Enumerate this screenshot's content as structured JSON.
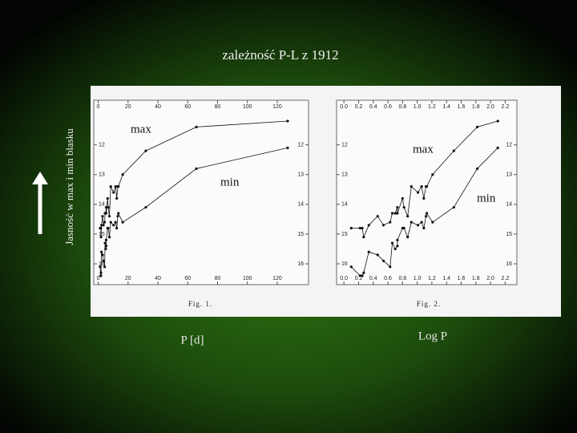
{
  "title": "zależność P-L  z 1912",
  "y_label": "Jasność w max i min blasku",
  "chart_data": [
    {
      "type": "scatter",
      "caption": "Fig. 1.",
      "x_label": "P [d]",
      "annotations": [
        "max",
        "min"
      ],
      "xlim": [
        -3,
        141
      ],
      "ylim": [
        16.7,
        10.5
      ],
      "xticks": [
        0,
        20,
        40,
        60,
        80,
        100,
        120
      ],
      "yticks": [
        12,
        13,
        14,
        15,
        16
      ],
      "x": [
        1.25,
        1.66,
        1.76,
        1.87,
        2.17,
        2.91,
        3.5,
        4.29,
        4.55,
        4.97,
        5.31,
        5.32,
        6.29,
        6.65,
        7.48,
        8.4,
        10.3,
        11.6,
        12.4,
        13.1,
        13.5,
        16.4,
        31.9,
        65.8,
        127
      ],
      "series": [
        {
          "name": "max",
          "color": "#111111",
          "values": [
            14.8,
            14.8,
            14.8,
            15.1,
            14.7,
            14.4,
            14.7,
            14.6,
            14.3,
            14.3,
            14.1,
            14.3,
            13.8,
            14.1,
            14.4,
            13.4,
            13.6,
            13.4,
            13.8,
            13.4,
            13.4,
            13.0,
            12.2,
            11.4,
            11.2
          ]
        },
        {
          "name": "min",
          "color": "#111111",
          "values": [
            16.1,
            16.4,
            16.4,
            16.3,
            15.6,
            15.7,
            15.9,
            16.1,
            15.3,
            15.5,
            15.4,
            15.2,
            14.8,
            14.8,
            15.1,
            14.6,
            14.7,
            14.6,
            14.8,
            14.4,
            14.3,
            14.6,
            14.1,
            12.8,
            12.1
          ]
        }
      ]
    },
    {
      "type": "scatter",
      "caption": "Fig. 2.",
      "x_label": "Log P",
      "annotations": [
        "max",
        "min"
      ],
      "xlim": [
        -0.1,
        2.36
      ],
      "ylim": [
        16.7,
        10.5
      ],
      "xticks": [
        {
          "value": 0,
          "label": "0.0"
        },
        0.2,
        0.4,
        0.6,
        0.8,
        {
          "value": 1,
          "label": "1.0"
        },
        1.2,
        1.4,
        1.6,
        1.8,
        {
          "value": 2,
          "label": "2.0"
        },
        2.2
      ],
      "yticks": [
        12,
        13,
        14,
        15,
        16
      ],
      "x": [
        0.1,
        0.22,
        0.25,
        0.27,
        0.34,
        0.46,
        0.54,
        0.63,
        0.66,
        0.7,
        0.73,
        0.73,
        0.8,
        0.82,
        0.87,
        0.92,
        1.01,
        1.06,
        1.09,
        1.12,
        1.13,
        1.21,
        1.5,
        1.82,
        2.1
      ],
      "series": [
        {
          "name": "max",
          "color": "#111111",
          "values": [
            14.8,
            14.8,
            14.8,
            15.1,
            14.7,
            14.4,
            14.7,
            14.6,
            14.3,
            14.3,
            14.1,
            14.3,
            13.8,
            14.1,
            14.4,
            13.4,
            13.6,
            13.4,
            13.8,
            13.4,
            13.4,
            13.0,
            12.2,
            11.4,
            11.2
          ]
        },
        {
          "name": "min",
          "color": "#111111",
          "values": [
            16.1,
            16.4,
            16.4,
            16.3,
            15.6,
            15.7,
            15.9,
            16.1,
            15.3,
            15.5,
            15.4,
            15.2,
            14.8,
            14.8,
            15.1,
            14.6,
            14.7,
            14.6,
            14.8,
            14.4,
            14.3,
            14.6,
            14.1,
            12.8,
            12.1
          ]
        }
      ]
    }
  ]
}
